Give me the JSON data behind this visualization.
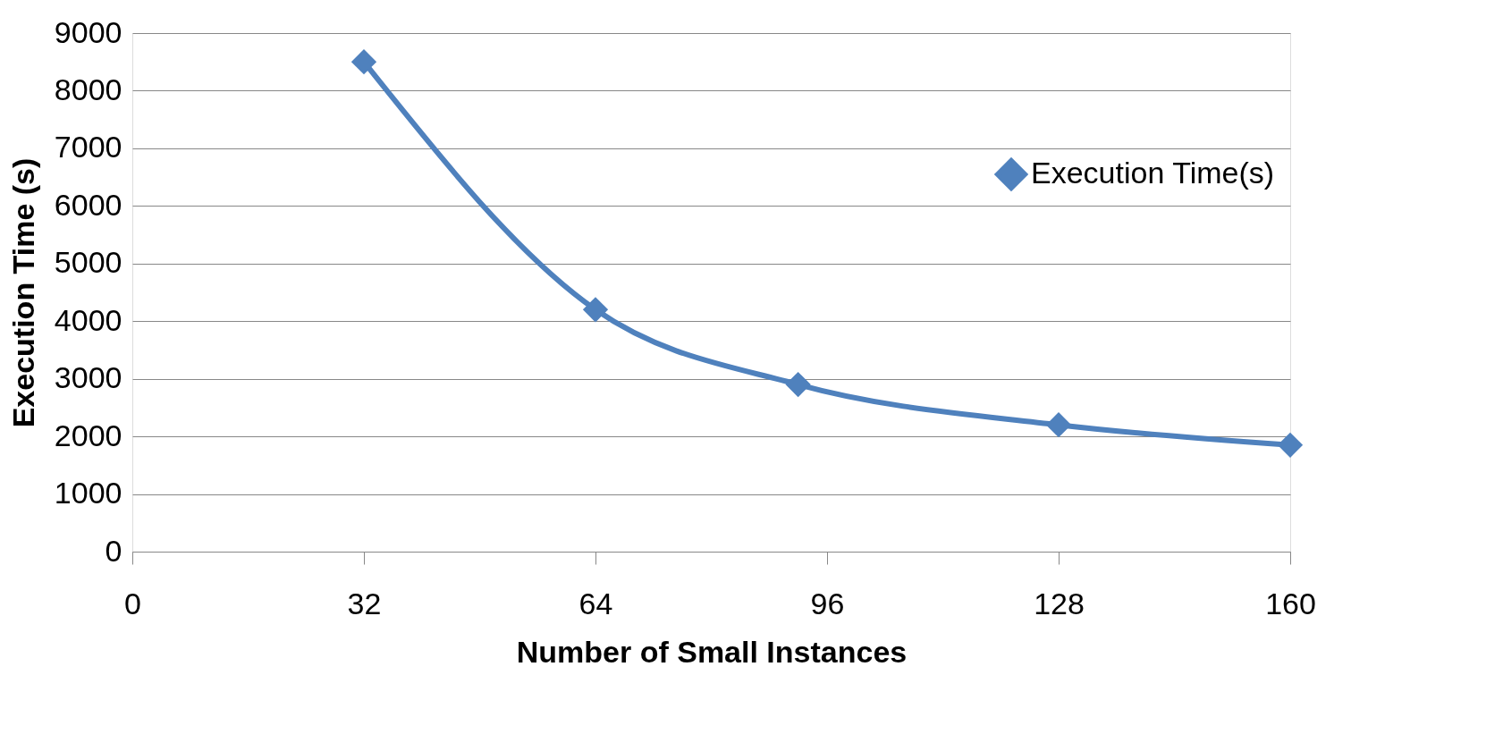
{
  "chart_data": {
    "type": "line",
    "xlabel": "Number of Small Instances",
    "ylabel": "Execution Time (s)",
    "x": [
      32,
      64,
      92,
      128,
      160
    ],
    "series": [
      {
        "name": "Execution Time(s)",
        "color": "#4f81bd",
        "values": [
          8500,
          4200,
          2900,
          2200,
          1850
        ]
      }
    ],
    "xlim": [
      0,
      160
    ],
    "xticks": [
      0,
      32,
      64,
      96,
      128,
      160
    ],
    "ylim": [
      0,
      9000
    ],
    "yticks": [
      0,
      1000,
      2000,
      3000,
      4000,
      5000,
      6000,
      7000,
      8000,
      9000
    ],
    "grid": "y",
    "legend": "right",
    "marker": "diamond",
    "line_style": "solid"
  }
}
